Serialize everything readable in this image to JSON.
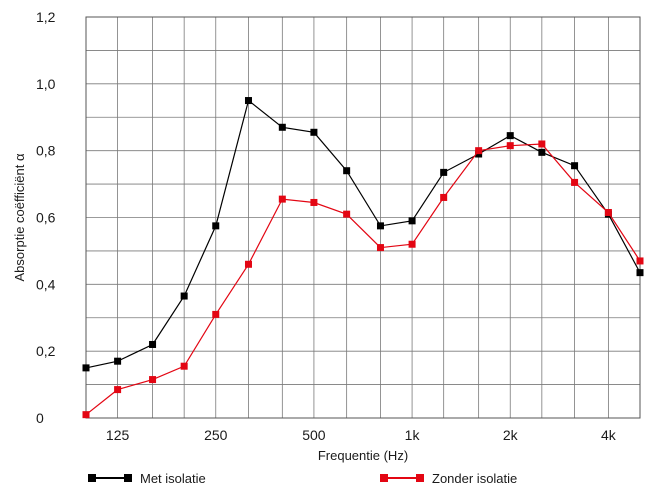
{
  "chart_data": {
    "type": "line",
    "xlabel": "Frequentie (Hz)",
    "ylabel": "Absorptie coëfficiënt  α",
    "ylim": [
      0,
      1.2
    ],
    "x_scale": "log",
    "xlim": [
      100,
      5000
    ],
    "grid": true,
    "legend_position": "bottom",
    "x_ticks": [
      {
        "value": 125,
        "label": "125"
      },
      {
        "value": 250,
        "label": "250"
      },
      {
        "value": 500,
        "label": "500"
      },
      {
        "value": 1000,
        "label": "1k"
      },
      {
        "value": 2000,
        "label": "2k"
      },
      {
        "value": 4000,
        "label": "4k"
      }
    ],
    "y_ticks": [
      {
        "value": 0,
        "label": "0"
      },
      {
        "value": 0.2,
        "label": "0,2"
      },
      {
        "value": 0.4,
        "label": "0,4"
      },
      {
        "value": 0.6,
        "label": "0,6"
      },
      {
        "value": 0.8,
        "label": "0,8"
      },
      {
        "value": 1.0,
        "label": "1,0"
      },
      {
        "value": 1.2,
        "label": "1,2"
      }
    ],
    "x": [
      100,
      125,
      160,
      200,
      250,
      315,
      400,
      500,
      630,
      800,
      1000,
      1250,
      1600,
      2000,
      2500,
      3150,
      4000,
      5000
    ],
    "series": [
      {
        "name": "Met isolatie",
        "color": "#000000",
        "values": [
          0.15,
          0.17,
          0.22,
          0.365,
          0.575,
          0.95,
          0.87,
          0.855,
          0.74,
          0.575,
          0.59,
          0.735,
          0.79,
          0.845,
          0.795,
          0.755,
          0.61,
          0.435
        ]
      },
      {
        "name": "Zonder isolatie",
        "color": "#e30613",
        "values": [
          0.01,
          0.085,
          0.115,
          0.155,
          0.31,
          0.46,
          0.655,
          0.645,
          0.61,
          0.51,
          0.52,
          0.66,
          0.8,
          0.815,
          0.82,
          0.705,
          0.615,
          0.47
        ]
      }
    ]
  }
}
